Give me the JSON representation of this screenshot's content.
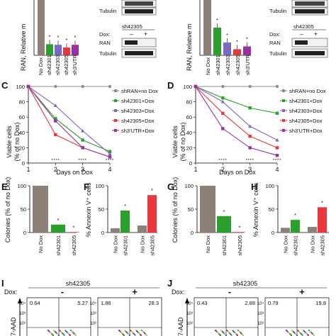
{
  "panels": {
    "C": "C",
    "D": "D",
    "E": "E",
    "F": "F",
    "G": "G",
    "H": "H",
    "I": "I",
    "J": "J"
  },
  "top": {
    "ylabel": "RAN, Relative m",
    "categories": [
      "No Dox",
      "sh42301",
      "sh42303",
      "sh42305",
      "sh3'UTR"
    ],
    "left_values": [
      100,
      20,
      19,
      14,
      19
    ],
    "right_values": [
      100,
      50,
      23,
      11,
      16
    ],
    "colors": [
      "#8c8079",
      "#2ca02c",
      "#7b68c2",
      "#e8383d",
      "#9b2fa6"
    ],
    "blot_labels": {
      "ran": "RAN",
      "tubulin": "Tubulin",
      "dox": "Dox:",
      "minus": "–",
      "plus": "+",
      "sh": "sh42305"
    }
  },
  "survival": {
    "ylabel": "Viable cells\n(% of no Dox)",
    "xlabel": "Days on Dox",
    "legend": [
      "shRAN+no Dox",
      "sh42301+Dox",
      "sh42303+Dox",
      "sh42305+Dox",
      "sh3'UTR+Dox"
    ],
    "colors": [
      "#8c8c8c",
      "#2ca02c",
      "#7b68c2",
      "#e8383d",
      "#9b2fa6"
    ]
  },
  "chart_data": [
    {
      "panel": "C",
      "type": "line",
      "x": [
        1,
        2,
        3,
        4
      ],
      "ylim": [
        0,
        100
      ],
      "xlabel": "Days on Dox",
      "ylabel": "Viable cells (% of no Dox)",
      "series": [
        {
          "name": "shRAN+no Dox",
          "values": [
            100,
            100,
            100,
            100
          ]
        },
        {
          "name": "sh42301+Dox",
          "values": [
            100,
            58,
            30,
            15
          ]
        },
        {
          "name": "sh42303+Dox",
          "values": [
            100,
            75,
            42,
            12
          ]
        },
        {
          "name": "sh42305+Dox",
          "values": [
            100,
            37,
            20,
            8
          ]
        },
        {
          "name": "sh3'UTR+Dox",
          "values": [
            100,
            55,
            20,
            8
          ]
        }
      ]
    },
    {
      "panel": "D",
      "type": "line",
      "x": [
        1,
        2,
        3,
        4
      ],
      "ylim": [
        0,
        100
      ],
      "xlabel": "Days on Dox",
      "ylabel": "Viable cells (% of no Dox)",
      "series": [
        {
          "name": "shRAN+no Dox",
          "values": [
            100,
            100,
            100,
            100
          ]
        },
        {
          "name": "sh42301+Dox",
          "values": [
            100,
            85,
            72,
            65
          ]
        },
        {
          "name": "sh42303+Dox",
          "values": [
            100,
            80,
            48,
            30
          ]
        },
        {
          "name": "sh42305+Dox",
          "values": [
            100,
            65,
            35,
            20
          ]
        },
        {
          "name": "sh3'UTR+Dox",
          "values": [
            100,
            45,
            20,
            10
          ]
        }
      ]
    },
    {
      "panel": "E",
      "type": "bar",
      "categories": [
        "No Dox",
        "sh42301",
        "sh42305"
      ],
      "values": [
        100,
        17,
        1
      ],
      "ylabel": "Colonies (% of no Dox)"
    },
    {
      "panel": "F",
      "type": "bar",
      "categories": [
        "No Dox",
        "sh42301",
        "No Dox",
        "sh42305"
      ],
      "values": [
        9,
        47,
        15,
        80
      ],
      "ylabel": "% Annexin V+ cells"
    },
    {
      "panel": "G",
      "type": "bar",
      "categories": [
        "No Dox",
        "sh42301",
        "sh42305"
      ],
      "values": [
        100,
        35,
        1
      ],
      "ylabel": "Colonies (% of no Dox)"
    },
    {
      "panel": "H",
      "type": "bar",
      "categories": [
        "No Dox",
        "sh42301",
        "No Dox",
        "sh42305"
      ],
      "values": [
        10,
        27,
        12,
        54
      ],
      "ylabel": "% Annexin V+ cells"
    }
  ],
  "bars_text": {
    "colonies_ylabel": "Colonies (% of no Dox)",
    "annexin_ylabel": "% Annexin V⁺ cells",
    "ef_cats": [
      "No Dox",
      "sh42301",
      "sh42305"
    ],
    "f_cats": [
      "No Dox",
      "sh42301",
      "No Dox",
      "sh42305"
    ]
  },
  "flow": {
    "title": "sh42305",
    "dox": "Dox:",
    "minus": "-",
    "plus": "+",
    "yaxis": "7-AAD",
    "I": {
      "q_left_ul": "0.64",
      "q_left_ur": "5.27",
      "q_right_ul": "1.86",
      "q_right_ur": "28.3"
    },
    "J": {
      "q_left_ul": "0.43",
      "q_left_ur": "2.88",
      "q_right_ul": "0.79",
      "q_right_ur": "19.8"
    },
    "ticks": [
      "10⁴",
      "10³",
      "10²"
    ]
  },
  "star": "*"
}
